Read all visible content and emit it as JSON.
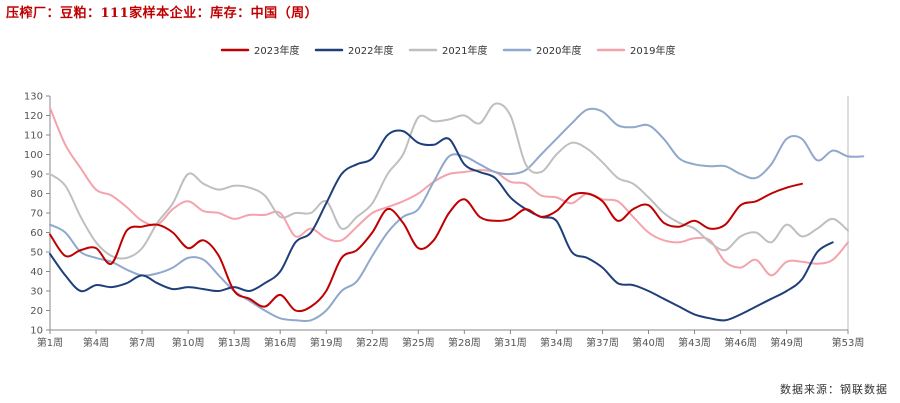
{
  "title": "压榨厂：豆粕：111家样本企业：库存：中国（周）",
  "source": "数据来源：钢联数据",
  "chart_data": {
    "type": "line",
    "xlabel": "",
    "ylabel": "",
    "ylim": [
      10,
      130
    ],
    "yticks": [
      10,
      20,
      30,
      40,
      50,
      60,
      70,
      80,
      90,
      100,
      110,
      120,
      130
    ],
    "x_tick_weeks": [
      1,
      4,
      7,
      10,
      13,
      16,
      19,
      22,
      25,
      28,
      31,
      34,
      37,
      40,
      43,
      46,
      49,
      53
    ],
    "x_tick_labels": [
      "第1周",
      "第4周",
      "第7周",
      "第10周",
      "第13周",
      "第16周",
      "第19周",
      "第22周",
      "第25周",
      "第28周",
      "第31周",
      "第34周",
      "第37周",
      "第40周",
      "第43周",
      "第46周",
      "第49周",
      "第53周"
    ],
    "x_range": [
      1,
      53
    ],
    "grid": false,
    "legend_position": "top",
    "series": [
      {
        "name": "2023年度",
        "color": "#c00000",
        "values": [
          59,
          48,
          51,
          52,
          44,
          61,
          63,
          64,
          60,
          52,
          56,
          48,
          30,
          26,
          22,
          28,
          20,
          22,
          30,
          47,
          51,
          60,
          72,
          65,
          52,
          56,
          70,
          77,
          68,
          66,
          67,
          72,
          68,
          71,
          79,
          80,
          76,
          66,
          72,
          74,
          65,
          63,
          66,
          62,
          64,
          74,
          76,
          80,
          83,
          85
        ]
      },
      {
        "name": "2022年度",
        "color": "#1f3f7a",
        "values": [
          49,
          38,
          30,
          33,
          32,
          34,
          38,
          34,
          31,
          32,
          31,
          30,
          32,
          30,
          34,
          40,
          55,
          60,
          75,
          90,
          95,
          98,
          110,
          112,
          106,
          105,
          108,
          95,
          91,
          88,
          78,
          72,
          68,
          66,
          50,
          47,
          42,
          34,
          33,
          30,
          26,
          22,
          18,
          16,
          15,
          18,
          22,
          26,
          30,
          36,
          50,
          55
        ]
      },
      {
        "name": "2021年度",
        "color": "#bfbfbf",
        "values": [
          90,
          84,
          68,
          55,
          48,
          47,
          52,
          65,
          75,
          90,
          85,
          82,
          84,
          83,
          79,
          68,
          70,
          70,
          76,
          62,
          68,
          75,
          90,
          100,
          119,
          117,
          118,
          120,
          116,
          126,
          120,
          95,
          91,
          100,
          106,
          103,
          96,
          88,
          85,
          78,
          70,
          65,
          62,
          55,
          51,
          58,
          60,
          55,
          64,
          58,
          62,
          67,
          61
        ]
      },
      {
        "name": "2020年度",
        "color": "#8fa8cc",
        "values": [
          64,
          60,
          50,
          47,
          45,
          41,
          38,
          39,
          42,
          47,
          46,
          38,
          30,
          25,
          20,
          16,
          15,
          15,
          20,
          30,
          35,
          48,
          60,
          68,
          72,
          86,
          99,
          99,
          95,
          91,
          90,
          92,
          100,
          108,
          116,
          123,
          122,
          115,
          114,
          115,
          108,
          98,
          95,
          94,
          94,
          90,
          88,
          95,
          108,
          108,
          97,
          102,
          99,
          99
        ]
      },
      {
        "name": "2019年度",
        "color": "#f4a3ac",
        "values": [
          124,
          105,
          93,
          82,
          79,
          73,
          66,
          64,
          72,
          76,
          71,
          70,
          67,
          69,
          69,
          70,
          58,
          62,
          57,
          56,
          63,
          70,
          73,
          76,
          80,
          86,
          90,
          91,
          92,
          91,
          86,
          85,
          79,
          78,
          75,
          80,
          77,
          76,
          68,
          60,
          56,
          55,
          57,
          56,
          45,
          42,
          46,
          38,
          45,
          45,
          44,
          46,
          55
        ]
      }
    ]
  }
}
